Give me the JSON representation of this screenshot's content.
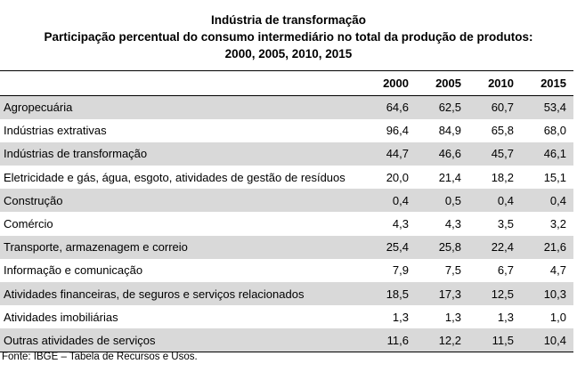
{
  "chart_data": {
    "type": "table",
    "title": "Indústria de transformação",
    "subtitle_line1": "Participação percentual do consumo intermediário no total da produção de produtos:",
    "subtitle_line2": "2000, 2005, 2010, 2015",
    "columns": [
      "",
      "2000",
      "2005",
      "2010",
      "2015"
    ],
    "rows": [
      {
        "label": "Agropecuária",
        "values": [
          "64,6",
          "62,5",
          "60,7",
          "53,4"
        ]
      },
      {
        "label": "Indústrias extrativas",
        "values": [
          "96,4",
          "84,9",
          "65,8",
          "68,0"
        ]
      },
      {
        "label": "Indústrias de transformação",
        "values": [
          "44,7",
          "46,6",
          "45,7",
          "46,1"
        ]
      },
      {
        "label": "Eletricidade e gás, água, esgoto, atividades de gestão de resíduos",
        "values": [
          "20,0",
          "21,4",
          "18,2",
          "15,1"
        ]
      },
      {
        "label": "Construção",
        "values": [
          "0,4",
          "0,5",
          "0,4",
          "0,4"
        ]
      },
      {
        "label": "Comércio",
        "values": [
          "4,3",
          "4,3",
          "3,5",
          "3,2"
        ]
      },
      {
        "label": "Transporte, armazenagem e correio",
        "values": [
          "25,4",
          "25,8",
          "22,4",
          "21,6"
        ]
      },
      {
        "label": "Informação e comunicação",
        "values": [
          "7,9",
          "7,5",
          "6,7",
          "4,7"
        ]
      },
      {
        "label": "Atividades financeiras, de seguros e serviços relacionados",
        "values": [
          "18,5",
          "17,3",
          "12,5",
          "10,3"
        ]
      },
      {
        "label": "Atividades imobiliárias",
        "values": [
          "1,3",
          "1,3",
          "1,3",
          "1,0"
        ]
      },
      {
        "label": "Outras atividades de serviços",
        "values": [
          "11,6",
          "12,2",
          "11,5",
          "10,4"
        ]
      }
    ],
    "shaded_row_color": "#d9d9d9",
    "source": "Fonte: IBGE – Tabela de Recursos e Usos."
  }
}
